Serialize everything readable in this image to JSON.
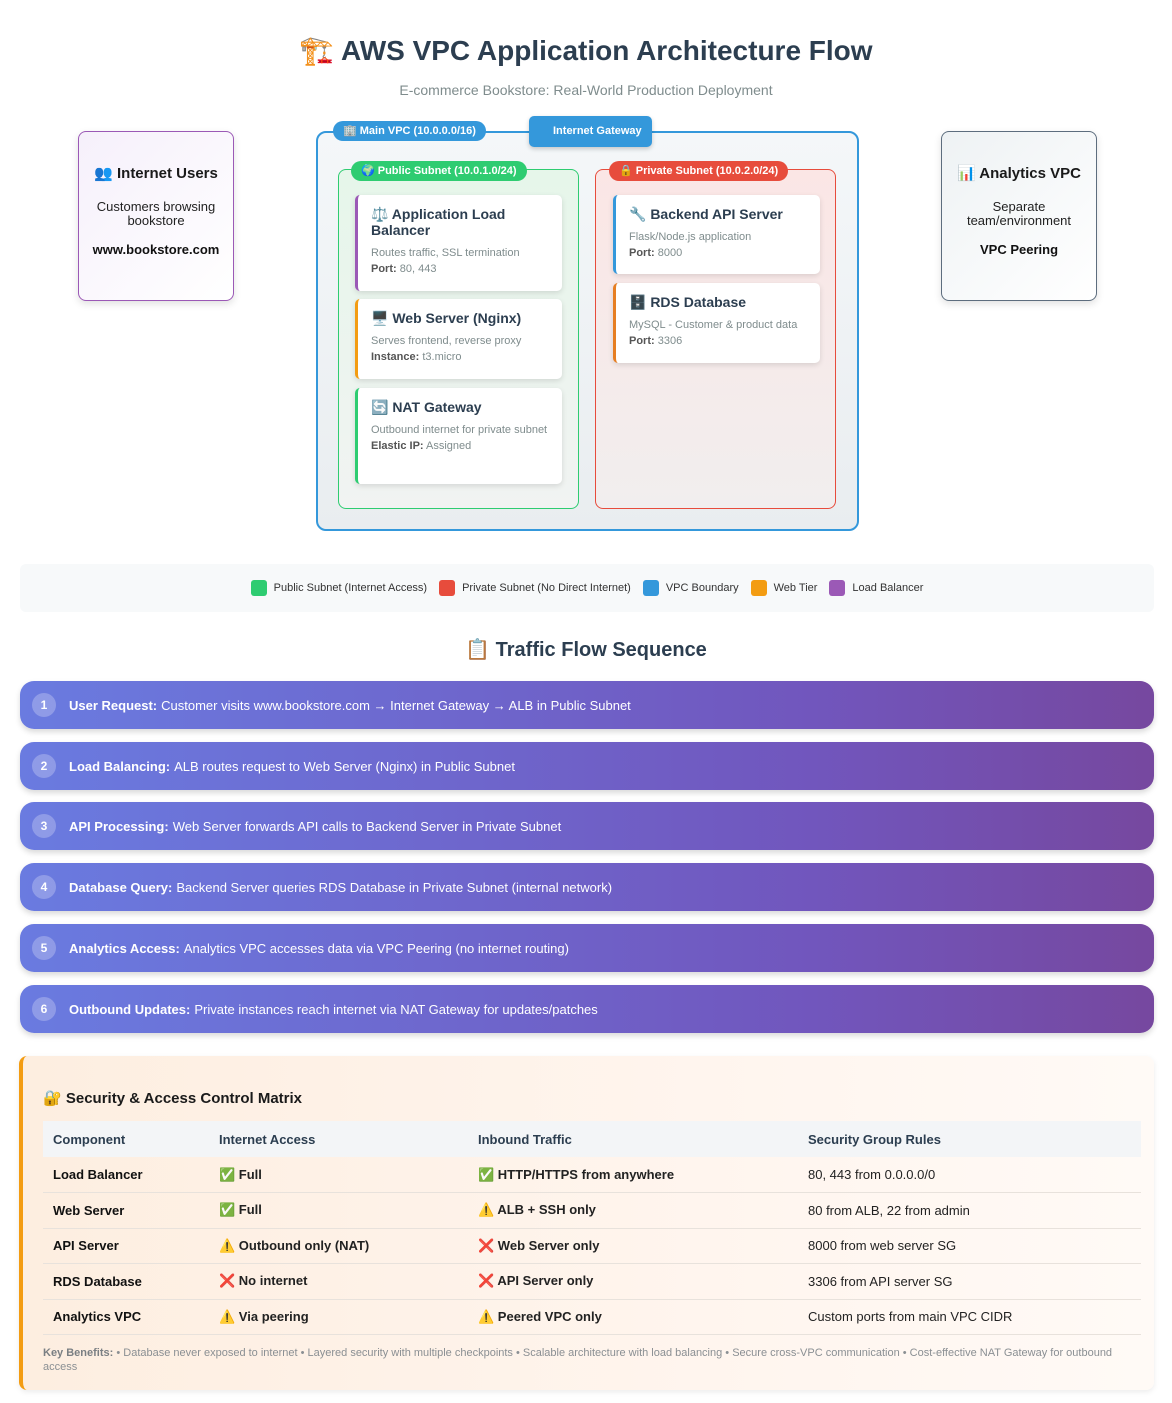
{
  "header": {
    "title": "🏗️ AWS VPC Application Architecture Flow",
    "subtitle": "E-commerce Bookstore: Real-World Production Deployment"
  },
  "users_box": {
    "title": "👥 Internet Users",
    "desc": "Customers browsing bookstore",
    "strong": "www.bookstore.com"
  },
  "analytics_box": {
    "title": "📊 Analytics VPC",
    "desc": "Separate team/environment",
    "strong": "VPC Peering"
  },
  "vpc": {
    "label": "🏢 Main VPC (10.0.0.0/16)",
    "internet_gateway": "Internet Gateway",
    "public_subnet": "🌍 Public Subnet (10.0.1.0/24)",
    "private_subnet": "🔒 Private Subnet (10.0.2.0/24)"
  },
  "cards": {
    "alb": {
      "title": "⚖️ Application Load Balancer",
      "desc": "Routes traffic, SSL termination",
      "meta_label": "Port:",
      "meta_value": "80, 443"
    },
    "web": {
      "title": "🖥️ Web Server (Nginx)",
      "desc": "Serves frontend, reverse proxy",
      "meta_label": "Instance:",
      "meta_value": "t3.micro"
    },
    "nat": {
      "title": "🔄 NAT Gateway",
      "desc": "Outbound internet for private subnet",
      "meta_label": "Elastic IP:",
      "meta_value": "Assigned"
    },
    "api": {
      "title": "🔧 Backend API Server",
      "desc": "Flask/Node.js application",
      "meta_label": "Port:",
      "meta_value": "8000"
    },
    "rds": {
      "title": "🗄️ RDS Database",
      "desc": "MySQL - Customer & product data",
      "meta_label": "Port:",
      "meta_value": "3306"
    }
  },
  "legend": [
    {
      "label": "Public Subnet (Internet Access)",
      "color": "#2ecc71"
    },
    {
      "label": "Private Subnet (No Direct Internet)",
      "color": "#e74c3c"
    },
    {
      "label": "VPC Boundary",
      "color": "#3498db"
    },
    {
      "label": "Web Tier",
      "color": "#f39c12"
    },
    {
      "label": "Load Balancer",
      "color": "#9b59b6"
    }
  ],
  "flow": {
    "title": "📋 Traffic Flow Sequence",
    "steps": [
      {
        "num": "1",
        "label": "User Request:",
        "text": "Customer visits www.bookstore.com → Internet Gateway → ALB in Public Subnet"
      },
      {
        "num": "2",
        "label": "Load Balancing:",
        "text": "ALB routes request to Web Server (Nginx) in Public Subnet"
      },
      {
        "num": "3",
        "label": "API Processing:",
        "text": "Web Server forwards API calls to Backend Server in Private Subnet"
      },
      {
        "num": "4",
        "label": "Database Query:",
        "text": "Backend Server queries RDS Database in Private Subnet (internal network)"
      },
      {
        "num": "5",
        "label": "Analytics Access:",
        "text": "Analytics VPC accesses data via VPC Peering (no internet routing)"
      },
      {
        "num": "6",
        "label": "Outbound Updates:",
        "text": "Private instances reach internet via NAT Gateway for updates/patches"
      }
    ]
  },
  "security": {
    "title": "🔐 Security & Access Control Matrix",
    "headers": [
      "Component",
      "Internet Access",
      "Inbound Traffic",
      "Security Group Rules"
    ],
    "rows": [
      [
        "Load Balancer",
        "✅ Full",
        "✅ HTTP/HTTPS from anywhere",
        "80, 443 from 0.0.0.0/0"
      ],
      [
        "Web Server",
        "✅ Full",
        "⚠️ ALB + SSH only",
        "80 from ALB, 22 from admin"
      ],
      [
        "API Server",
        "⚠️ Outbound only (NAT)",
        "❌ Web Server only",
        "8000 from web server SG"
      ],
      [
        "RDS Database",
        "❌ No internet",
        "❌ API Server only",
        "3306 from API server SG"
      ],
      [
        "Analytics VPC",
        "⚠️ Via peering",
        "⚠️ Peered VPC only",
        "Custom ports from main VPC CIDR"
      ]
    ],
    "benefits_label": "Key Benefits:",
    "benefits_text": " • Database never exposed to internet • Layered security with multiple checkpoints • Scalable architecture with load balancing • Secure cross-VPC communication • Cost-effective NAT Gateway for outbound access"
  }
}
